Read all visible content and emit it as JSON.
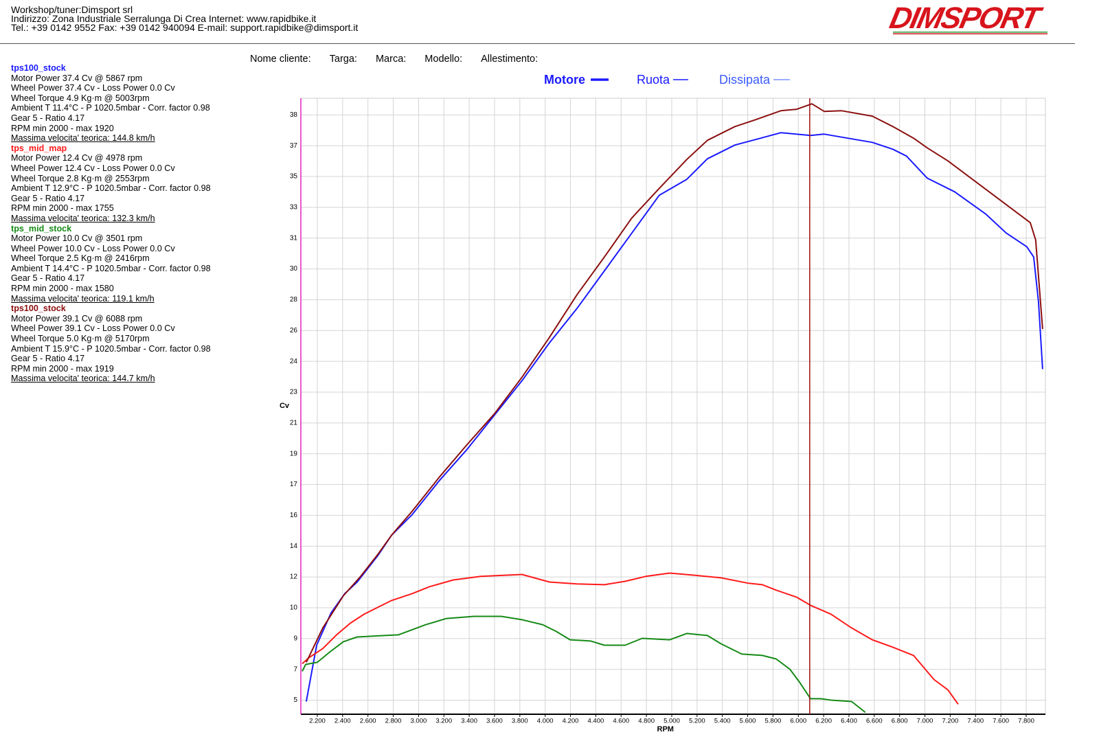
{
  "header": {
    "lines": [
      "Workshop/tuner:Dimsport srl",
      "Indirizzo: Zona Industriale Serralunga Di Crea Internet: www.rapidbike.it",
      "Tel.: +39 0142 9552 Fax: +39 0142 940094 E-mail: support.rapidbike@dimsport.it"
    ],
    "logo": "DIMSPORT"
  },
  "customer_fields": [
    "Nome cliente:",
    "Targa:",
    "Marca:",
    "Modello:",
    "Allestimento:"
  ],
  "chart_data": {
    "type": "line",
    "xlabel": "RPM",
    "ylabel": "Cv",
    "legend": [
      "Motore",
      "Ruota",
      "Dissipata"
    ],
    "xlim": [
      2070,
      7952
    ],
    "ylim": [
      4.2,
      39.2
    ],
    "grid": true,
    "cursor_x": 6090,
    "cursor_color": "#a01010",
    "xticks": [
      {
        "value": 2200,
        "label": "2.200"
      },
      {
        "value": 2400,
        "label": "2.400"
      },
      {
        "value": 2600,
        "label": "2.600"
      },
      {
        "value": 2800,
        "label": "2.800"
      },
      {
        "value": 3000,
        "label": "3.000"
      },
      {
        "value": 3200,
        "label": "3.200"
      },
      {
        "value": 3400,
        "label": "3.400"
      },
      {
        "value": 3600,
        "label": "3.600"
      },
      {
        "value": 3800,
        "label": "3.800"
      },
      {
        "value": 4000,
        "label": "4.000"
      },
      {
        "value": 4200,
        "label": "4.200"
      },
      {
        "value": 4400,
        "label": "4.400"
      },
      {
        "value": 4600,
        "label": "4.600"
      },
      {
        "value": 4800,
        "label": "4.800"
      },
      {
        "value": 5000,
        "label": "5.000"
      },
      {
        "value": 5200,
        "label": "5.200"
      },
      {
        "value": 5400,
        "label": "5.400"
      },
      {
        "value": 5600,
        "label": "5.600"
      },
      {
        "value": 5800,
        "label": "5.800"
      },
      {
        "value": 6000,
        "label": "6.000"
      },
      {
        "value": 6200,
        "label": "6.200"
      },
      {
        "value": 6400,
        "label": "6.400"
      },
      {
        "value": 6600,
        "label": "6.600"
      },
      {
        "value": 6800,
        "label": "6.800"
      },
      {
        "value": 7000,
        "label": "7.000"
      },
      {
        "value": 7200,
        "label": "7.200"
      },
      {
        "value": 7400,
        "label": "7.400"
      },
      {
        "value": 7600,
        "label": "7.600"
      },
      {
        "value": 7800,
        "label": "7.800"
      }
    ],
    "yticks": [
      {
        "value": 5,
        "label": "5"
      },
      {
        "value": 6.75,
        "label": "7"
      },
      {
        "value": 8.5,
        "label": "9"
      },
      {
        "value": 10.25,
        "label": "10"
      },
      {
        "value": 12,
        "label": "12"
      },
      {
        "value": 13.75,
        "label": "14"
      },
      {
        "value": 15.5,
        "label": "16"
      },
      {
        "value": 17.25,
        "label": "17"
      },
      {
        "value": 19,
        "label": "19"
      },
      {
        "value": 20.75,
        "label": "21"
      },
      {
        "value": 22.5,
        "label": "23"
      },
      {
        "value": 24.25,
        "label": "24"
      },
      {
        "value": 26,
        "label": "26"
      },
      {
        "value": 27.75,
        "label": "28"
      },
      {
        "value": 29.5,
        "label": "30"
      },
      {
        "value": 31.25,
        "label": "31"
      },
      {
        "value": 33,
        "label": "33"
      },
      {
        "value": 34.75,
        "label": "35"
      },
      {
        "value": 36.5,
        "label": "37"
      },
      {
        "value": 38.25,
        "label": "38"
      }
    ],
    "series": [
      {
        "name": "tps100_stock",
        "color": "#1a1aff",
        "info": [
          "Motor Power 37.4 Cv  @ 5867 rpm",
          "Wheel Power 37.4 Cv  - Loss Power 0.0 Cv",
          "Wheel Torque 4.9 Kg·m  @ 5003rpm",
          "Ambient T 11.4°C - P 1020.5mbar - Corr. factor 0.98",
          "Gear 5 - Ratio 4.17",
          "RPM min 2000 - max 1920",
          "Massima velocita' teorica: 144.8 km/h"
        ],
        "x": [
          2113,
          2195,
          2309,
          2417,
          2515,
          2677,
          2786,
          2949,
          3166,
          3383,
          3600,
          3817,
          4034,
          4251,
          4468,
          4685,
          4902,
          5119,
          5282,
          5499,
          5662,
          5863,
          6096,
          6204,
          6421,
          6584,
          6747,
          6855,
          7018,
          7235,
          7479,
          7642,
          7805,
          7859,
          7897,
          7930
        ],
        "values": [
          4.92,
          8.12,
          9.96,
          11.05,
          11.71,
          13.2,
          14.37,
          15.54,
          17.49,
          19.25,
          21.2,
          23.15,
          25.3,
          27.25,
          29.39,
          31.54,
          33.69,
          34.59,
          35.76,
          36.54,
          36.85,
          37.24,
          37.08,
          37.16,
          36.89,
          36.69,
          36.3,
          35.91,
          34.66,
          33.88,
          32.63,
          31.54,
          30.76,
          30.18,
          27.64,
          23.81
        ]
      },
      {
        "name": "tps_mid_map",
        "color": "#ff1a1a",
        "info": [
          "Motor Power 12.4 Cv  @ 4978 rpm",
          "Wheel Power 12.4 Cv  - Loss Power 0.0 Cv",
          "Wheel Torque 2.8 Kg·m  @ 2553rpm",
          "Ambient T 12.9°C - P 1020.5mbar - Corr. factor 0.98",
          "Gear 5 - Ratio 4.17",
          "RPM min 2000 - max 1755",
          "Massima velocita' teorica: 132.3 km/h"
        ],
        "x": [
          2081,
          2135,
          2243,
          2352,
          2460,
          2569,
          2677,
          2786,
          2949,
          3084,
          3274,
          3491,
          3817,
          4034,
          4251,
          4468,
          4631,
          4794,
          4984,
          5173,
          5390,
          5607,
          5716,
          5825,
          5987,
          6096,
          6259,
          6421,
          6584,
          6747,
          6910,
          7072,
          7181,
          7263
        ],
        "values": [
          7.07,
          7.42,
          7.93,
          8.71,
          9.37,
          9.88,
          10.27,
          10.66,
          11.05,
          11.44,
          11.83,
          12.03,
          12.14,
          11.71,
          11.6,
          11.56,
          11.75,
          12.03,
          12.22,
          12.1,
          11.95,
          11.64,
          11.56,
          11.25,
          10.85,
          10.39,
          9.88,
          9.1,
          8.43,
          8.01,
          7.54,
          6.17,
          5.59,
          4.77
        ]
      },
      {
        "name": "tps_mid_stock",
        "color": "#168a16",
        "info": [
          "Motor Power 10.0 Cv  @ 3501 rpm",
          "Wheel Power 10.0 Cv  - Loss Power 0.0 Cv",
          "Wheel Torque 2.5 Kg·m  @ 2416rpm",
          "Ambient T 14.4°C - P 1020.5mbar - Corr. factor 0.98",
          "Gear 5 - Ratio 4.17",
          "RPM min 2000 - max 1580",
          "Massima velocita' teorica: 119.1 km/h"
        ],
        "x": [
          2081,
          2108,
          2200,
          2298,
          2406,
          2515,
          2732,
          2840,
          3057,
          3220,
          3437,
          3654,
          3817,
          3980,
          4088,
          4197,
          4360,
          4468,
          4631,
          4767,
          4984,
          5119,
          5282,
          5390,
          5553,
          5716,
          5825,
          5933,
          6014,
          6096,
          6177,
          6259,
          6421,
          6530
        ],
        "values": [
          6.64,
          7.03,
          7.15,
          7.73,
          8.32,
          8.59,
          8.67,
          8.71,
          9.29,
          9.64,
          9.76,
          9.76,
          9.57,
          9.29,
          8.9,
          8.43,
          8.36,
          8.12,
          8.12,
          8.51,
          8.43,
          8.79,
          8.67,
          8.2,
          7.62,
          7.54,
          7.34,
          6.76,
          5.98,
          5.08,
          5.08,
          5.0,
          4.92,
          4.3
        ]
      },
      {
        "name": "tps100_stock",
        "color": "#8b0f0f",
        "info": [
          "Motor Power 39.1 Cv  @ 6088 rpm",
          "Wheel Power 39.1 Cv  - Loss Power 0.0 Cv",
          "Wheel Torque 5.0 Kg·m  @ 5170rpm",
          "Ambient T 15.9°C - P 1020.5mbar - Corr. factor 0.98",
          "Gear 5 - Ratio 4.17",
          "RPM min 2000 - max 1919",
          "Massima velocita' teorica: 144.7 km/h"
        ],
        "x": [
          2113,
          2243,
          2406,
          2542,
          2677,
          2786,
          2949,
          3166,
          3383,
          3600,
          3817,
          4034,
          4251,
          4468,
          4685,
          4902,
          5119,
          5282,
          5499,
          5662,
          5863,
          5987,
          6107,
          6204,
          6340,
          6584,
          6747,
          6910,
          7018,
          7181,
          7398,
          7615,
          7832,
          7875,
          7930
        ],
        "values": [
          7.15,
          9.1,
          10.93,
          12.03,
          13.27,
          14.37,
          15.73,
          17.69,
          19.52,
          21.28,
          23.35,
          25.61,
          28.03,
          30.18,
          32.4,
          34.08,
          35.72,
          36.81,
          37.59,
          37.98,
          38.49,
          38.57,
          38.88,
          38.45,
          38.49,
          38.18,
          37.59,
          36.93,
          36.38,
          35.64,
          34.47,
          33.3,
          32.13,
          31.15,
          26.08
        ]
      }
    ]
  }
}
